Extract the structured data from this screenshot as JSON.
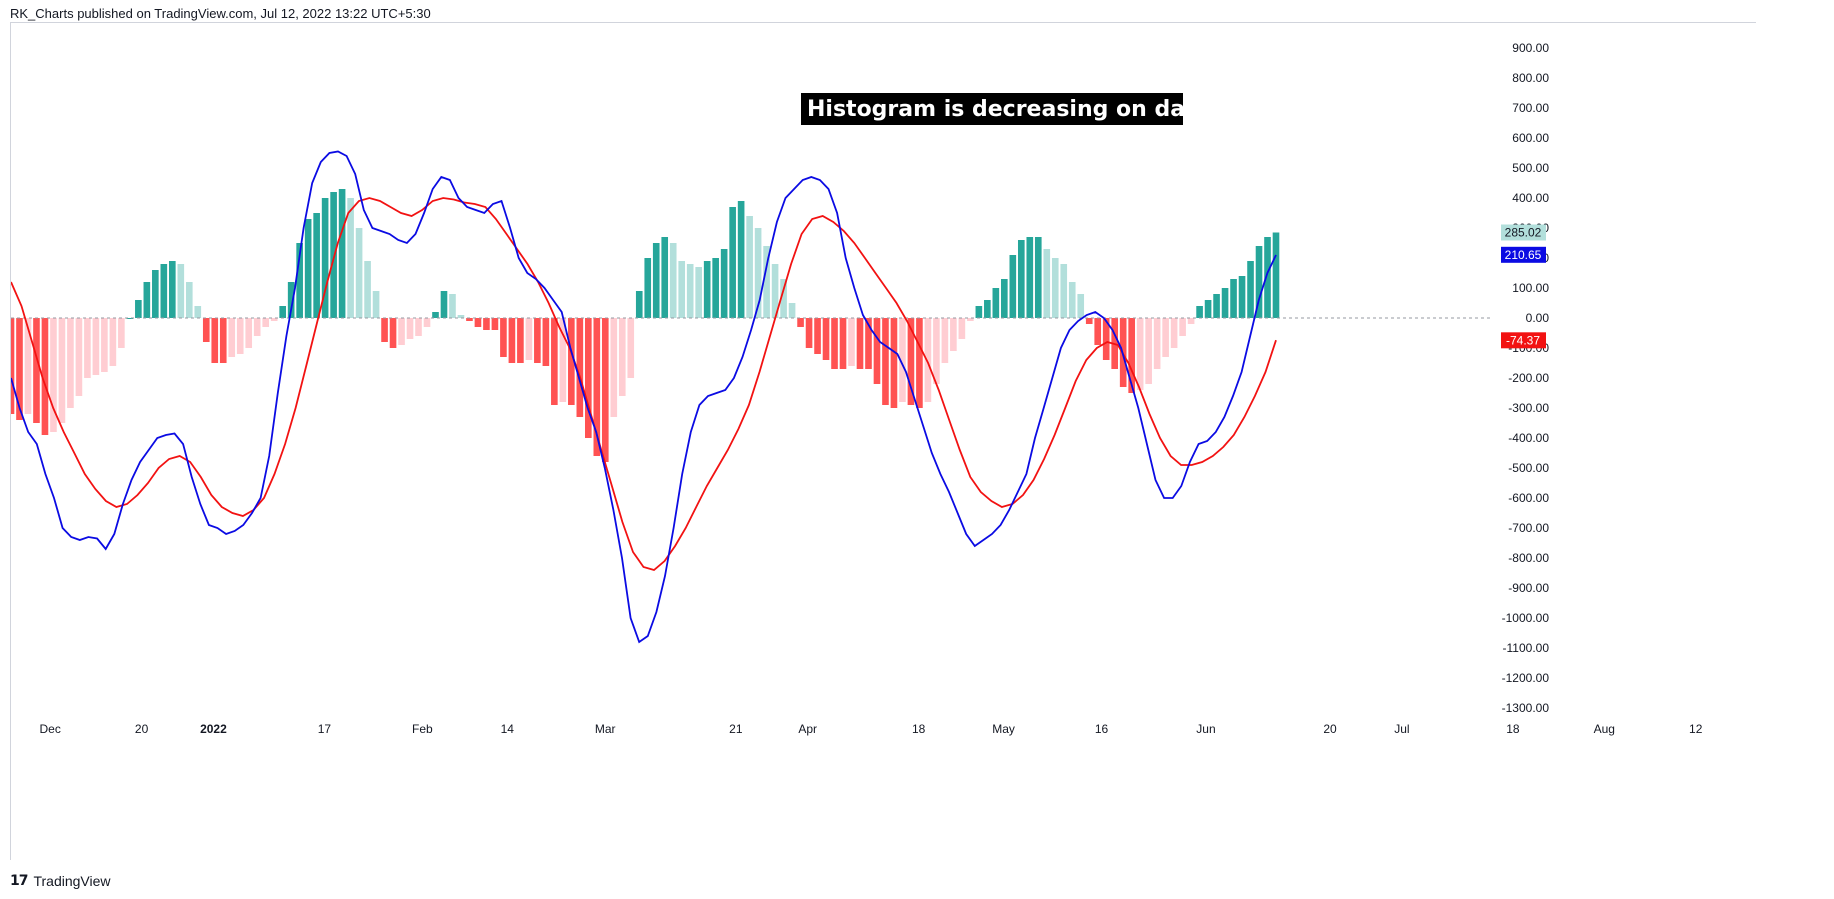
{
  "header": {
    "text": "RK_Charts published on TradingView.com, Jul 12, 2022 13:22 UTC+5:30"
  },
  "footer": {
    "brand": "TradingView",
    "logo_icon": "tradingview-logo-icon"
  },
  "annotation": {
    "text": "Histogram is decreasing on daily chart"
  },
  "colors": {
    "macd_line": "#0b0be3",
    "signal_line": "#f21212",
    "hist_pos_strong": "#26a69a",
    "hist_pos_weak": "#b2dfdb",
    "hist_neg_strong": "#ff5252",
    "hist_neg_weak": "#ffcdd2",
    "zero_line": "#9598a1",
    "annotation_bg": "#000000"
  },
  "chart_data": {
    "type": "bar",
    "title": "",
    "xlabel": "",
    "ylabel": "",
    "ylim": [
      -1350,
      950
    ],
    "yticks": [
      "900.00",
      "800.00",
      "700.00",
      "600.00",
      "500.00",
      "400.00",
      "300.00",
      "200.00",
      "100.00",
      "0.00",
      "-100.00",
      "-200.00",
      "-300.00",
      "-400.00",
      "-500.00",
      "-600.00",
      "-700.00",
      "-800.00",
      "-900.00",
      "-1000.00",
      "-1100.00",
      "-1200.00",
      "-1300.00"
    ],
    "xticks": [
      {
        "label": "Dec",
        "bold": false,
        "day": 6
      },
      {
        "label": "20",
        "bold": false,
        "day": 20
      },
      {
        "label": "2022",
        "bold": true,
        "day": 31
      },
      {
        "label": "17",
        "bold": false,
        "day": 48
      },
      {
        "label": "Feb",
        "bold": false,
        "day": 63
      },
      {
        "label": "14",
        "bold": false,
        "day": 76
      },
      {
        "label": "Mar",
        "bold": false,
        "day": 91
      },
      {
        "label": "21",
        "bold": false,
        "day": 111
      },
      {
        "label": "Apr",
        "bold": false,
        "day": 122
      },
      {
        "label": "18",
        "bold": false,
        "day": 139
      },
      {
        "label": "May",
        "bold": false,
        "day": 152
      },
      {
        "label": "16",
        "bold": false,
        "day": 167
      },
      {
        "label": "Jun",
        "bold": false,
        "day": 183
      },
      {
        "label": "20",
        "bold": false,
        "day": 202
      },
      {
        "label": "Jul",
        "bold": false,
        "day": 213
      },
      {
        "label": "18",
        "bold": false,
        "day": 230
      },
      {
        "label": "Aug",
        "bold": false,
        "day": 244
      },
      {
        "label": "12",
        "bold": false,
        "day": 258
      }
    ],
    "x_start": "2021-11-29",
    "x_end": "2022-08-21",
    "last_values": {
      "histogram": "285.02",
      "macd": "210.65",
      "signal": "-74.37"
    },
    "histogram": [
      -320,
      -340,
      -320,
      -350,
      -390,
      -380,
      -350,
      -300,
      -260,
      -200,
      -190,
      -180,
      -160,
      -100,
      0,
      60,
      120,
      160,
      180,
      190,
      180,
      120,
      40,
      -80,
      -150,
      -150,
      -130,
      -120,
      -100,
      -60,
      -30,
      -10,
      40,
      120,
      250,
      330,
      350,
      400,
      420,
      430,
      400,
      300,
      190,
      90,
      -80,
      -100,
      -90,
      -70,
      -60,
      -30,
      20,
      90,
      80,
      10,
      -10,
      -30,
      -40,
      -40,
      -130,
      -150,
      -150,
      -140,
      -150,
      -160,
      -290,
      -280,
      -290,
      -330,
      -400,
      -460,
      -480,
      -330,
      -260,
      -200,
      90,
      200,
      250,
      270,
      250,
      190,
      180,
      170,
      190,
      200,
      230,
      370,
      390,
      340,
      300,
      240,
      180,
      130,
      50,
      -30,
      -100,
      -120,
      -140,
      -170,
      -170,
      -160,
      -170,
      -170,
      -220,
      -290,
      -300,
      -280,
      -290,
      -300,
      -280,
      -220,
      -150,
      -110,
      -70,
      -10,
      40,
      60,
      100,
      130,
      210,
      260,
      270,
      270,
      230,
      200,
      180,
      120,
      80,
      -20,
      -90,
      -140,
      -170,
      -230,
      -250,
      -240,
      -220,
      -170,
      -130,
      -100,
      -60,
      -20,
      40,
      60,
      80,
      100,
      130,
      140,
      190,
      240,
      270,
      285
    ]
  }
}
